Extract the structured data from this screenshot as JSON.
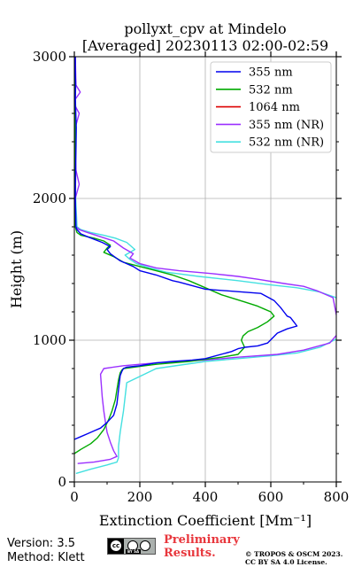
{
  "chart_data": {
    "type": "line",
    "title": "pollyxt_cpv at Mindelo",
    "subtitle": "[Averaged] 20230113 02:00-02:59",
    "xlabel": "Extinction Coefficient [Mm⁻¹]",
    "ylabel": "Height (m)",
    "xlim": [
      0,
      800
    ],
    "ylim": [
      0,
      3000
    ],
    "xticks": [
      "0",
      "200",
      "400",
      "600",
      "800"
    ],
    "yticks": [
      "0",
      "1000",
      "2000",
      "3000"
    ],
    "grid": true,
    "legend_position": "top-right",
    "series": [
      {
        "name": "355 nm",
        "color": "#0000ee",
        "x": [
          0,
          20,
          40,
          60,
          80,
          100,
          120,
          130,
          135,
          140,
          145,
          150,
          160,
          200,
          250,
          300,
          360,
          400,
          480,
          500,
          520,
          560,
          590,
          620,
          650,
          680,
          670,
          660,
          650,
          640,
          630,
          610,
          570,
          400,
          320,
          300,
          250,
          200,
          180,
          140,
          110,
          100,
          110,
          85,
          40,
          20,
          8,
          5,
          3,
          4,
          6,
          3,
          4,
          3,
          3
        ],
        "y": [
          300,
          320,
          340,
          360,
          380,
          420,
          470,
          550,
          650,
          750,
          780,
          800,
          810,
          820,
          840,
          850,
          860,
          870,
          920,
          940,
          950,
          960,
          980,
          1050,
          1080,
          1100,
          1130,
          1160,
          1170,
          1200,
          1230,
          1280,
          1330,
          1360,
          1410,
          1420,
          1460,
          1490,
          1520,
          1560,
          1610,
          1640,
          1660,
          1690,
          1730,
          1750,
          1780,
          1800,
          2000,
          2200,
          2500,
          2700,
          2800,
          2900,
          3000
        ]
      },
      {
        "name": "532 nm",
        "color": "#00aa00",
        "x": [
          0,
          20,
          50,
          70,
          90,
          105,
          115,
          125,
          130,
          135,
          140,
          145,
          150,
          200,
          250,
          350,
          450,
          500,
          520,
          510,
          515,
          530,
          560,
          590,
          610,
          600,
          580,
          560,
          520,
          450,
          390,
          350,
          300,
          250,
          200,
          150,
          120,
          90,
          100,
          110,
          90,
          60,
          20,
          8,
          3,
          2,
          3,
          2,
          2,
          2
        ],
        "y": [
          200,
          230,
          270,
          310,
          370,
          440,
          500,
          580,
          650,
          720,
          770,
          790,
          800,
          815,
          830,
          850,
          880,
          900,
          950,
          1000,
          1030,
          1060,
          1090,
          1130,
          1170,
          1200,
          1220,
          1240,
          1270,
          1320,
          1380,
          1420,
          1460,
          1490,
          1520,
          1550,
          1590,
          1620,
          1650,
          1670,
          1700,
          1720,
          1740,
          1760,
          1800,
          2000,
          2200,
          2500,
          2800,
          3000
        ]
      },
      {
        "name": "1064 nm",
        "color": "#dd0000",
        "x": [],
        "y": []
      },
      {
        "name": "355 nm (NR)",
        "color": "#9b30ff",
        "x": [
          10,
          60,
          110,
          130,
          120,
          110,
          100,
          95,
          90,
          85,
          82,
          80,
          90,
          150,
          250,
          400,
          500,
          560,
          620,
          700,
          780,
          810,
          790,
          740,
          700,
          640,
          560,
          500,
          420,
          320,
          250,
          200,
          170,
          180,
          150,
          120,
          80,
          40,
          15,
          5,
          3,
          15,
          5,
          3,
          3,
          15,
          3,
          3,
          18,
          5,
          3
        ],
        "y": [
          130,
          140,
          160,
          180,
          220,
          280,
          350,
          420,
          500,
          600,
          700,
          760,
          800,
          820,
          840,
          860,
          880,
          890,
          900,
          930,
          980,
          1060,
          1300,
          1350,
          1380,
          1400,
          1430,
          1450,
          1470,
          1490,
          1510,
          1540,
          1580,
          1610,
          1650,
          1700,
          1730,
          1760,
          1780,
          1800,
          2000,
          2100,
          2200,
          2300,
          2500,
          2600,
          2650,
          2700,
          2750,
          2800,
          3000
        ]
      },
      {
        "name": "532 nm (NR)",
        "color": "#44e0e0",
        "x": [
          5,
          50,
          100,
          130,
          135,
          135,
          140,
          150,
          160,
          250,
          400,
          500,
          600,
          680,
          750,
          810,
          800,
          750,
          680,
          600,
          500,
          380,
          280,
          230,
          190,
          170,
          155,
          185,
          160,
          125,
          90,
          50,
          20,
          8,
          4,
          3,
          3,
          4,
          3,
          2
        ],
        "y": [
          60,
          90,
          120,
          140,
          170,
          250,
          350,
          500,
          700,
          800,
          850,
          870,
          890,
          910,
          950,
          1020,
          1300,
          1340,
          1370,
          1390,
          1420,
          1450,
          1480,
          1510,
          1540,
          1570,
          1600,
          1640,
          1690,
          1720,
          1740,
          1760,
          1780,
          1800,
          2000,
          2200,
          2400,
          2600,
          2800,
          3000
        ]
      }
    ]
  },
  "footer": {
    "version": "Version: 3.5",
    "method": "Method: Klett",
    "preliminary_line1": "Preliminary",
    "preliminary_line2": "Results.",
    "copyright_line1": "© TROPOS & OSCM 2023.",
    "copyright_line2": "CC BY SA 4.0 License.",
    "license_badge_text": "BY SA"
  }
}
